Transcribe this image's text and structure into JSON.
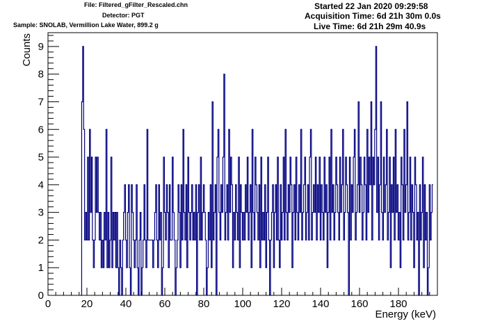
{
  "header": {
    "file": "File: Filtered_gFilter_Rescaled.chn",
    "detector": "Detector: PGT",
    "sample": "Sample: SNOLAB, Vermillion Lake Water, 899.2 g",
    "started": "Started 22 Jan 2020 09:29:58",
    "acquisition": "Acquisition Time: 6d 21h 30m 0.0s",
    "live": "Live Time: 6d 21h 29m 40.9s"
  },
  "colors": {
    "series": "#000080",
    "frame": "#000000",
    "background": "#ffffff"
  },
  "chart_data": {
    "type": "line",
    "style": "step",
    "xlabel": "Energy (keV)",
    "ylabel": "Counts",
    "xlim": [
      0,
      200
    ],
    "ylim": [
      0,
      9.5
    ],
    "xticks": [
      0,
      20,
      40,
      60,
      80,
      100,
      120,
      140,
      160,
      180
    ],
    "yticks": [
      0,
      1,
      2,
      3,
      4,
      5,
      6,
      7,
      8,
      9
    ],
    "grid": false,
    "legend": "none",
    "bin_width_keV": 0.5,
    "x_start_keV": 16.8,
    "series": [
      {
        "values": [
          0,
          7,
          9,
          6,
          2,
          3,
          2,
          5,
          2,
          6,
          3,
          5,
          2,
          1,
          2,
          5,
          3,
          5,
          3,
          2,
          3,
          1,
          2,
          1,
          3,
          2,
          6,
          1,
          3,
          1,
          2,
          5,
          1,
          3,
          2,
          3,
          1,
          3,
          1,
          0,
          2,
          1,
          0,
          2,
          3,
          4,
          2,
          1,
          3,
          4,
          1,
          0,
          4,
          3,
          2,
          1,
          2,
          4,
          1,
          0,
          2,
          3,
          0,
          1,
          2,
          4,
          2,
          1,
          6,
          2,
          2,
          2,
          2,
          2,
          1,
          2,
          3,
          4,
          2,
          1,
          4,
          2,
          3,
          0,
          1,
          5,
          3,
          2,
          4,
          3,
          1,
          4,
          2,
          2,
          5,
          3,
          2,
          0,
          1,
          2,
          4,
          3,
          1,
          4,
          2,
          6,
          3,
          2,
          4,
          1,
          5,
          3,
          2,
          3,
          4,
          2,
          3,
          2,
          4,
          0,
          3,
          4,
          2,
          5,
          2,
          3,
          4,
          3,
          2,
          0,
          1,
          3,
          2,
          4,
          1,
          7,
          2,
          3,
          4,
          0,
          5,
          6,
          3,
          2,
          4,
          3,
          5,
          8,
          2,
          3,
          4,
          2,
          6,
          3,
          5,
          4,
          1,
          3,
          2,
          4,
          3,
          2,
          5,
          1,
          4,
          3,
          2,
          3,
          2,
          4,
          3,
          5,
          2,
          3,
          4,
          1,
          6,
          3,
          2,
          5,
          4,
          3,
          2,
          4,
          1,
          5,
          2,
          3,
          2,
          4,
          1,
          3,
          5,
          2,
          0,
          2,
          3,
          4,
          1,
          3,
          4,
          2,
          5,
          2,
          1,
          4,
          2,
          3,
          5,
          2,
          6,
          3,
          2,
          4,
          3,
          5,
          4,
          1,
          3,
          4,
          2,
          5,
          3,
          2,
          4,
          3,
          6,
          2,
          3,
          4,
          5,
          2,
          3,
          4,
          2,
          5,
          6,
          2,
          3,
          4,
          3,
          5,
          2,
          4,
          3,
          5,
          2,
          4,
          3,
          2,
          5,
          3,
          4,
          1,
          3,
          5,
          2,
          6,
          3,
          4,
          2,
          3,
          5,
          4,
          3,
          2,
          5,
          3,
          4,
          6,
          2,
          3,
          5,
          4,
          3,
          0,
          5,
          2,
          4,
          3,
          5,
          6,
          2,
          3,
          4,
          7,
          3,
          5,
          4,
          2,
          3,
          5,
          4,
          2,
          6,
          3,
          5,
          4,
          7,
          2,
          5,
          4,
          6,
          9,
          3,
          5,
          2,
          4,
          7,
          3,
          2,
          5,
          3,
          4,
          6,
          2,
          3,
          5,
          1,
          4,
          3,
          5,
          2,
          6,
          3,
          4,
          2,
          3,
          1,
          5,
          4,
          2,
          6,
          3,
          4,
          7,
          2,
          3,
          5,
          2,
          4,
          3,
          1,
          5,
          4,
          2,
          3,
          0,
          4,
          2,
          3,
          5,
          1,
          4,
          2,
          3,
          0,
          1,
          4,
          2,
          3,
          4
        ]
      }
    ]
  }
}
